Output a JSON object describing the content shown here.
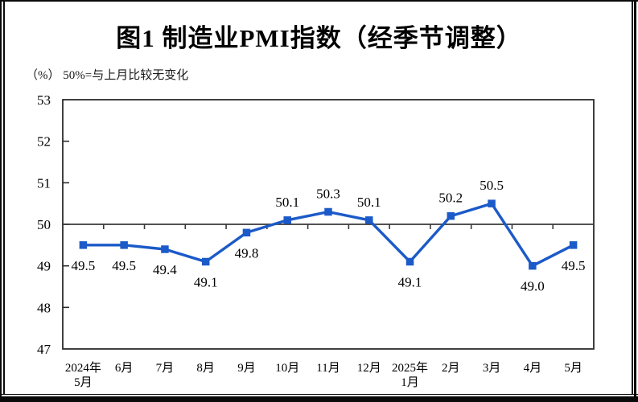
{
  "chart_data": {
    "type": "line",
    "title": "图1 制造业PMI指数（经季节调整）",
    "unit_note": "（%） 50%=与上月比较无变化",
    "categories": [
      [
        "2024年",
        "5月"
      ],
      [
        "6月"
      ],
      [
        "7月"
      ],
      [
        "8月"
      ],
      [
        "9月"
      ],
      [
        "10月"
      ],
      [
        "11月"
      ],
      [
        "12月"
      ],
      [
        "2025年",
        "1月"
      ],
      [
        "2月"
      ],
      [
        "3月"
      ],
      [
        "4月"
      ],
      [
        "5月"
      ]
    ],
    "values": [
      49.5,
      49.5,
      49.4,
      49.1,
      49.8,
      50.1,
      50.3,
      50.1,
      49.1,
      50.2,
      50.5,
      49.0,
      49.5
    ],
    "value_labels": [
      "49.5",
      "49.5",
      "49.4",
      "49.1",
      "49.8",
      "50.1",
      "50.3",
      "50.1",
      "49.1",
      "50.2",
      "50.5",
      "49.0",
      "49.5"
    ],
    "label_positions": [
      "below",
      "below",
      "below",
      "below",
      "below",
      "above",
      "above",
      "above",
      "below",
      "above",
      "above",
      "below",
      "below"
    ],
    "yticks": [
      53,
      52,
      51,
      50,
      49,
      48,
      47
    ],
    "ylim": [
      47,
      53
    ],
    "reference_line": 50,
    "x_tick_style": "between-categories-on-reference-line",
    "grid": "off",
    "legend": "none",
    "line_color": "#1B5AC8",
    "reference_line_color": "#3a3a3a",
    "frame_color": "#2b2b2b",
    "text_color": "#000000"
  }
}
